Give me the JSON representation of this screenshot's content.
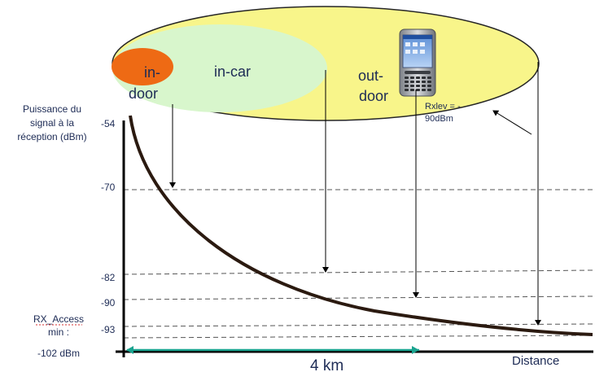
{
  "zones": {
    "indoor_label_1": "in-",
    "indoor_label_2": "door",
    "incar_label": "in-car",
    "outdoor_label_1": "out-",
    "outdoor_label_2": "door"
  },
  "phone_annotation": {
    "line1": "Rxlev = -",
    "line2": "90dBm"
  },
  "y_axis": {
    "title_lines": [
      "Puissance du",
      "signal à la",
      "réception (dBm)"
    ],
    "ticks": [
      "-54",
      "-70",
      "-82",
      "-90",
      "-93"
    ],
    "rx_access_lines": [
      "RX_Access",
      "min :"
    ],
    "rx_value": "-102 dBm"
  },
  "x_axis": {
    "label": "Distance",
    "distance_marker": "4 km"
  },
  "colors": {
    "outdoor_zone": "#f8f58a",
    "incar_zone": "#d8f6cc",
    "indoor_zone": "#ee6a14",
    "curve": "#2b1a10",
    "axis": "#000000",
    "text": "#1d2b55",
    "marker_arrow": "#1aa38f"
  },
  "icons": {
    "phone": "pda-phone-icon"
  }
}
